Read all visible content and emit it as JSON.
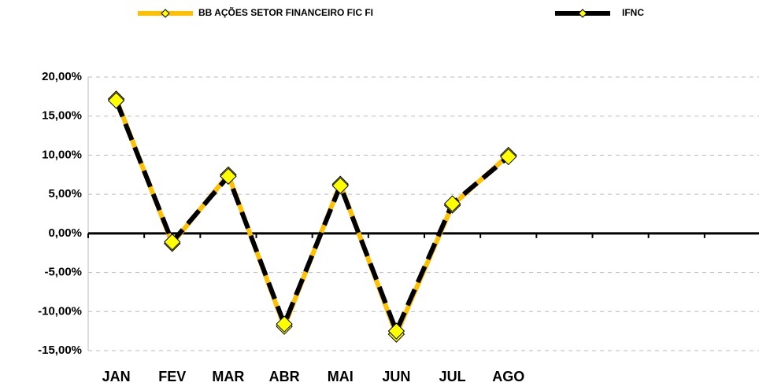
{
  "chart_data": {
    "type": "line",
    "categories": [
      "JAN",
      "FEV",
      "MAR",
      "ABR",
      "MAI",
      "JUN",
      "JUL",
      "AGO",
      null,
      null,
      null,
      null
    ],
    "series": [
      {
        "name": "BB AÇÕES SETOR FINANCEIRO FIC FI",
        "color": "#FFC000",
        "values": [
          17.2,
          -1.3,
          7.5,
          -11.9,
          6.3,
          -12.9,
          3.6,
          10.0,
          null,
          null,
          null,
          null
        ]
      },
      {
        "name": "IFNC",
        "color": "#000000",
        "values": [
          17.0,
          -1.1,
          7.3,
          -11.6,
          6.1,
          -12.5,
          3.8,
          9.8,
          null,
          null,
          null,
          null
        ]
      }
    ],
    "marker_color": "#FFFF00",
    "ylim": [
      -15,
      20
    ],
    "yticks": [
      {
        "value": -15,
        "label": "-15,00%"
      },
      {
        "value": -10,
        "label": "-10,00%"
      },
      {
        "value": -5,
        "label": "-5,00%"
      },
      {
        "value": 0,
        "label": "0,00%"
      },
      {
        "value": 5,
        "label": "5,00%"
      },
      {
        "value": 10,
        "label": "10,00%"
      },
      {
        "value": 15,
        "label": "15,00%"
      },
      {
        "value": 20,
        "label": "20,00%"
      }
    ],
    "grid": true,
    "legend": "top"
  }
}
